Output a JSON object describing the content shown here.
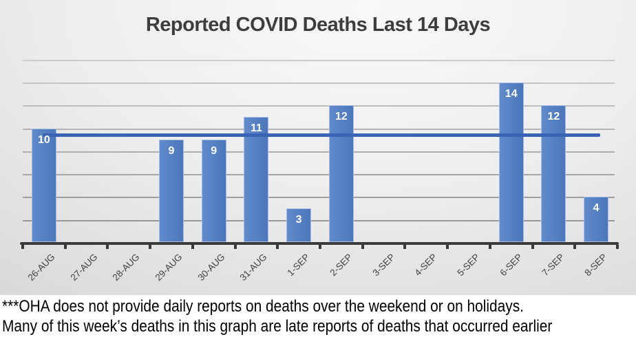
{
  "chart_data": {
    "type": "bar",
    "title": "Reported COVID Deaths Last 14 Days",
    "categories": [
      "26-AUG",
      "27-AUG",
      "28-AUG",
      "29-AUG",
      "30-AUG",
      "31-AUG",
      "1-SEP",
      "2-SEP",
      "3-SEP",
      "4-SEP",
      "5-SEP",
      "6-SEP",
      "7-SEP",
      "8-SEP"
    ],
    "values": [
      10,
      0,
      0,
      9,
      9,
      11,
      3,
      12,
      0,
      0,
      0,
      14,
      12,
      4
    ],
    "data_labels": [
      "10",
      "",
      "",
      "9",
      "9",
      "11",
      "3",
      "12",
      "",
      "",
      "",
      "14",
      "12",
      "4"
    ],
    "trendline": {
      "value": 9.4
    },
    "xlabel": "",
    "ylabel": "",
    "ylim": [
      0,
      16
    ],
    "gridline_step": 2,
    "grid": true,
    "y_axis_labels_shown": false,
    "legend": "none",
    "x_tick_labels_rotation_deg": -45
  },
  "notes": {
    "line1": "***OHA does not provide daily reports on deaths over the weekend or on holidays.",
    "line2": "Many of this week’s deaths in this graph are late reports of deaths that occurred earlier"
  },
  "colors": {
    "bar": "#4F7DC5",
    "bar_border": "#A8BCE3",
    "trendline": "#3A62B5",
    "axis": "#3A3A3A",
    "title_text": "#3D3D3D",
    "x_label_text": "#3F3F3F",
    "bar_label_text": "#FFFFFF",
    "notes_background": "#FFFFFF",
    "gridline_dark": "#8F8F8F",
    "gridline_light": "#CCCCCC"
  }
}
